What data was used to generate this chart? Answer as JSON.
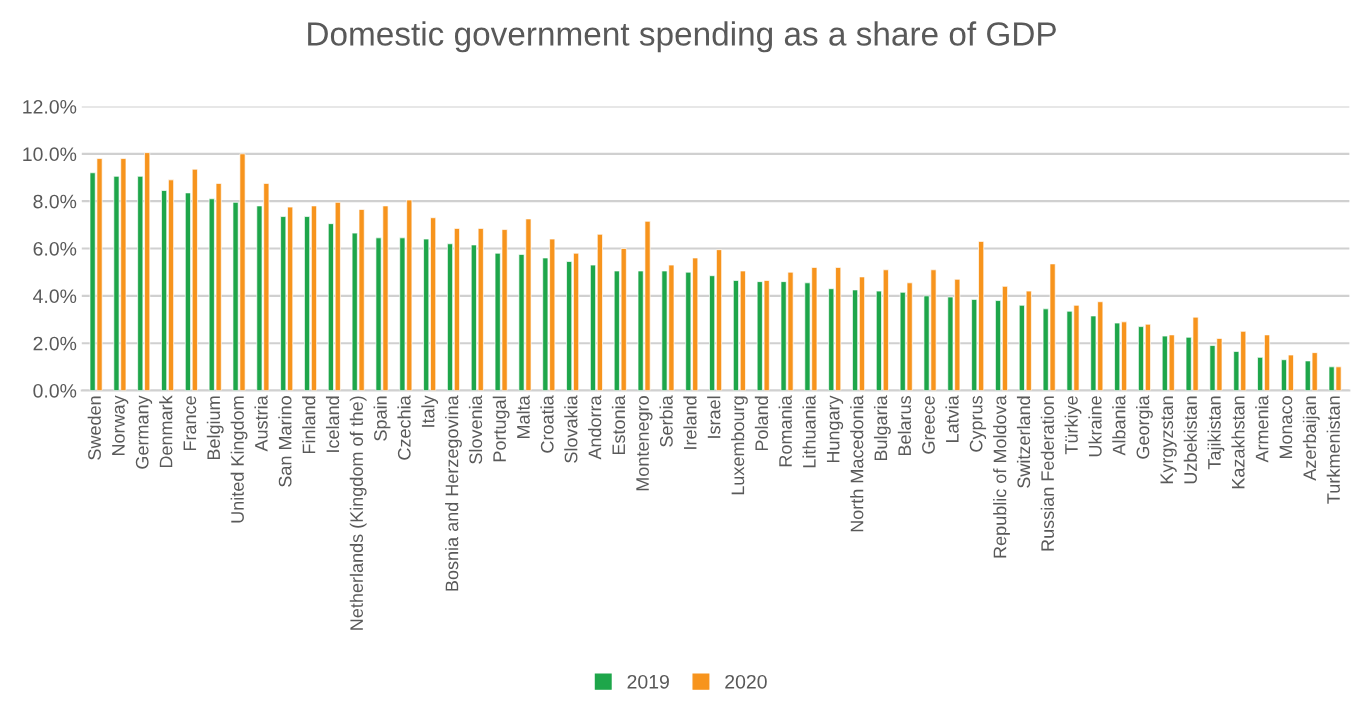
{
  "chart_data": {
    "type": "bar",
    "title": "Domestic government spending as a share of GDP",
    "categories": [
      "Sweden",
      "Norway",
      "Germany",
      "Denmark",
      "France",
      "Belgium",
      "United Kingdom",
      "Austria",
      "San Marino",
      "Finland",
      "Iceland",
      "Netherlands (Kingdom of the)",
      "Spain",
      "Czechia",
      "Italy",
      "Bosnia and Herzegovina",
      "Slovenia",
      "Portugal",
      "Malta",
      "Croatia",
      "Slovakia",
      "Andorra",
      "Estonia",
      "Montenegro",
      "Serbia",
      "Ireland",
      "Israel",
      "Luxembourg",
      "Poland",
      "Romania",
      "Lithuania",
      "Hungary",
      "North Macedonia",
      "Bulgaria",
      "Belarus",
      "Greece",
      "Latvia",
      "Cyprus",
      "Republic of Moldova",
      "Switzerland",
      "Russian Federation",
      "Türkiye",
      "Ukraine",
      "Albania",
      "Georgia",
      "Kyrgyzstan",
      "Uzbekistan",
      "Tajikistan",
      "Kazakhstan",
      "Armenia",
      "Monaco",
      "Azerbaijan",
      "Turkmenistan"
    ],
    "series": [
      {
        "name": "2019",
        "color": "#1ea64a",
        "values": [
          9.2,
          9.05,
          9.05,
          8.45,
          8.35,
          8.1,
          7.95,
          7.8,
          7.35,
          7.35,
          7.05,
          6.65,
          6.45,
          6.45,
          6.4,
          6.2,
          6.15,
          5.8,
          5.75,
          5.6,
          5.45,
          5.3,
          5.05,
          5.05,
          5.05,
          5.0,
          4.85,
          4.65,
          4.6,
          4.6,
          4.55,
          4.3,
          4.25,
          4.2,
          4.15,
          4.0,
          3.95,
          3.85,
          3.8,
          3.6,
          3.45,
          3.35,
          3.15,
          2.85,
          2.7,
          2.3,
          2.25,
          1.9,
          1.65,
          1.4,
          1.3,
          1.25,
          1.0
        ]
      },
      {
        "name": "2020",
        "color": "#f7941d",
        "values": [
          9.8,
          9.8,
          10.05,
          8.9,
          9.35,
          8.75,
          10.0,
          8.75,
          7.75,
          7.8,
          7.95,
          7.65,
          7.8,
          8.05,
          7.3,
          6.85,
          6.85,
          6.8,
          7.25,
          6.4,
          5.8,
          6.6,
          6.0,
          7.15,
          5.3,
          5.6,
          5.95,
          5.05,
          4.65,
          5.0,
          5.2,
          5.2,
          4.8,
          5.1,
          4.55,
          5.1,
          4.7,
          6.3,
          4.4,
          4.2,
          5.35,
          3.6,
          3.75,
          2.9,
          2.8,
          2.35,
          3.1,
          2.2,
          2.5,
          2.35,
          1.5,
          1.6,
          1.0
        ]
      }
    ],
    "ylim": [
      0,
      12
    ],
    "yticks": [
      {
        "value": 0,
        "label": "0.0%"
      },
      {
        "value": 2,
        "label": "2.0%"
      },
      {
        "value": 4,
        "label": "4.0%"
      },
      {
        "value": 6,
        "label": "6.0%"
      },
      {
        "value": 8,
        "label": "8.0%"
      },
      {
        "value": 10,
        "label": "10.0%"
      },
      {
        "value": 12,
        "label": "12.0%"
      }
    ],
    "grid": "y",
    "legend": "bottom"
  }
}
